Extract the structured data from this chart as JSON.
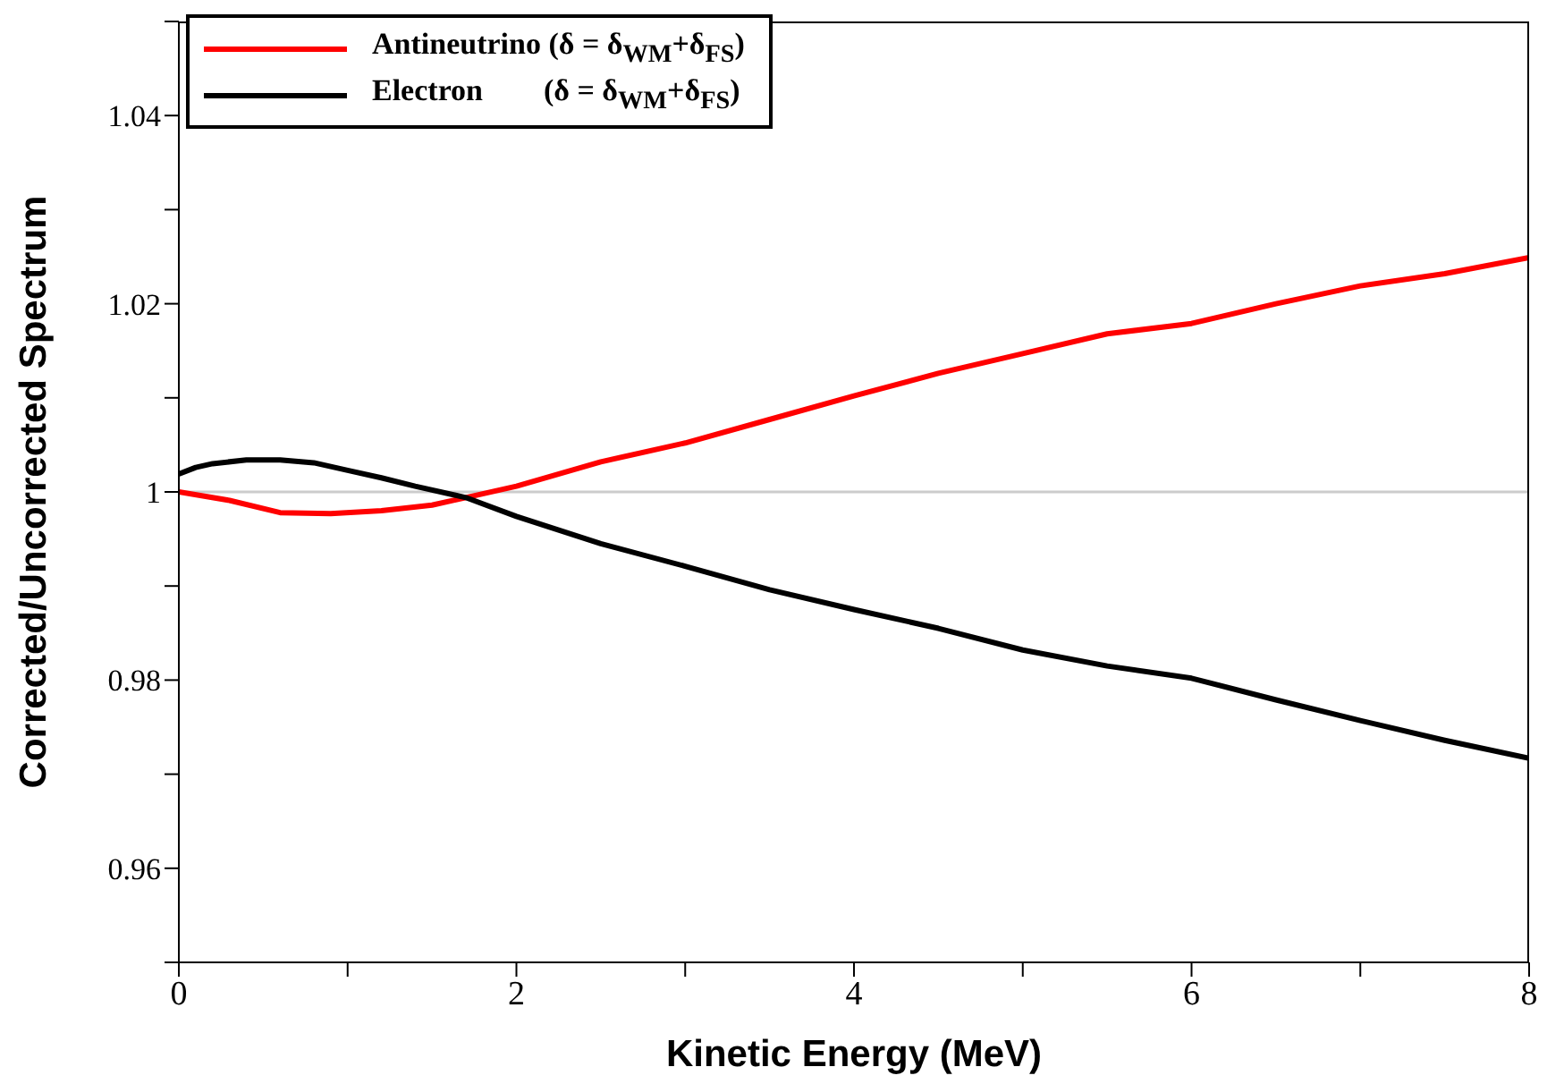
{
  "chart_data": {
    "type": "line",
    "xlabel": "Kinetic Energy (MeV)",
    "ylabel": "Corrected/Uncorrected Spectrum",
    "xlim": [
      0,
      8
    ],
    "xticks": [
      0,
      {
        "value": 1,
        "label": null
      },
      2,
      {
        "value": 3,
        "label": null
      },
      4,
      {
        "value": 5,
        "label": null
      },
      6,
      {
        "value": 7,
        "label": null
      },
      8
    ],
    "ylim": [
      0.95,
      1.05
    ],
    "yticks": [
      {
        "value": 0.95,
        "label": null
      },
      0.96,
      {
        "value": 0.97,
        "label": null
      },
      0.98,
      {
        "value": 0.99,
        "label": null
      },
      1,
      {
        "value": 1.01,
        "label": null
      },
      1.02,
      {
        "value": 1.03,
        "label": null
      },
      1.04,
      {
        "value": 1.05,
        "label": null
      }
    ],
    "legend": "top left",
    "marker": "none",
    "line_style": "solid",
    "ref_lines": [
      {
        "axis": "y",
        "value": 1,
        "color": "#cccccc"
      }
    ],
    "series": [
      {
        "name": "Antineutrino (δ = δ$_{WM}$+δ$_{FS}$)",
        "color": "#ff0000",
        "x": [
          0,
          0.3,
          0.6,
          0.9,
          1.2,
          1.5,
          1.7,
          2,
          2.5,
          3,
          3.5,
          4,
          4.5,
          5,
          5.5,
          6,
          6.5,
          7,
          7.5,
          8
        ],
        "values": [
          1.0,
          0.9991,
          0.9978,
          0.9977,
          0.998,
          0.9986,
          0.9994,
          1.0006,
          1.0032,
          1.0052,
          1.0077,
          1.0102,
          1.0126,
          1.0147,
          1.0168,
          1.0179,
          1.02,
          1.0219,
          1.0232,
          1.0249
        ]
      },
      {
        "name": "Electron        (δ = δ$_{WM}$+δ$_{FS}$)",
        "color": "#000000",
        "x": [
          0,
          0.1,
          0.2,
          0.4,
          0.6,
          0.8,
          1,
          1.2,
          1.4,
          1.7,
          2,
          2.5,
          3,
          3.5,
          4,
          4.5,
          5,
          5.5,
          6,
          6.5,
          7,
          7.5,
          8
        ],
        "values": [
          1.0019,
          1.0026,
          1.003,
          1.0034,
          1.0034,
          1.0031,
          1.0023,
          1.0015,
          1.0006,
          0.9994,
          0.9974,
          0.9945,
          0.9921,
          0.9896,
          0.9875,
          0.9855,
          0.9832,
          0.9815,
          0.9802,
          0.9779,
          0.9757,
          0.9736,
          0.9717
        ]
      }
    ]
  }
}
